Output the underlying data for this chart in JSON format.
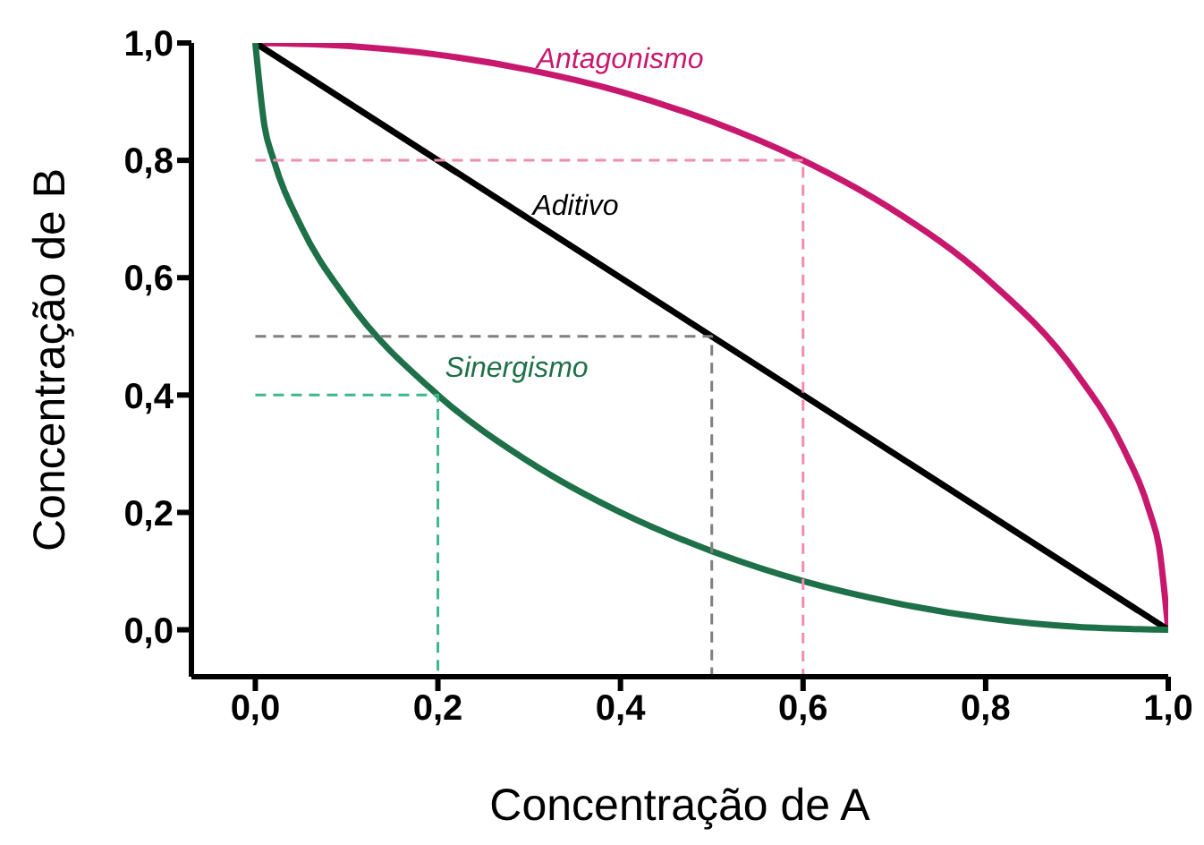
{
  "chart_data": {
    "type": "line",
    "xlabel": "Concentração de A",
    "ylabel": "Concentração de B",
    "xlim": [
      -0.07,
      1.0
    ],
    "ylim": [
      -0.08,
      1.0
    ],
    "xticks": [
      {
        "value": 0,
        "label": "0,0"
      },
      {
        "value": 0.2,
        "label": "0,2"
      },
      {
        "value": 0.4,
        "label": "0,4"
      },
      {
        "value": 0.6,
        "label": "0,6"
      },
      {
        "value": 0.8,
        "label": "0,8"
      },
      {
        "value": 1.0,
        "label": "1,0"
      }
    ],
    "yticks": [
      {
        "value": 0,
        "label": "0,0"
      },
      {
        "value": 0.2,
        "label": "0,2"
      },
      {
        "value": 0.4,
        "label": "0,4"
      },
      {
        "value": 0.6,
        "label": "0,6"
      },
      {
        "value": 0.8,
        "label": "0,8"
      },
      {
        "value": 1.0,
        "label": "1,0"
      }
    ],
    "grid": false,
    "legend": false,
    "marker": "none",
    "series": [
      {
        "name": "Antagonismo",
        "color": "#c8186e",
        "line_style": "solid",
        "x": [
          0,
          0.1,
          0.2,
          0.3,
          0.4,
          0.5,
          0.6,
          0.7,
          0.8,
          0.9,
          0.95,
          0.98,
          0.99,
          1.0
        ],
        "values": [
          1,
          0.995,
          0.98,
          0.954,
          0.917,
          0.866,
          0.8,
          0.714,
          0.6,
          0.436,
          0.312,
          0.199,
          0.141,
          0
        ]
      },
      {
        "name": "Aditivo",
        "color": "#000000",
        "line_style": "solid",
        "x": [
          0,
          1
        ],
        "values": [
          1,
          0
        ]
      },
      {
        "name": "Sinergismo",
        "color": "#1e7048",
        "line_style": "solid",
        "x": [
          0,
          0.01,
          0.02,
          0.05,
          0.1,
          0.2,
          0.3,
          0.4,
          0.5,
          0.6,
          0.7,
          0.8,
          0.9,
          1.0
        ],
        "values": [
          1,
          0.859,
          0.801,
          0.688,
          0.564,
          0.4,
          0.286,
          0.2,
          0.134,
          0.083,
          0.046,
          0.02,
          0.005,
          0
        ]
      },
      {
        "color": "#f08cb0",
        "line_style": "dashed",
        "x": [
          0,
          0.6,
          0.6
        ],
        "values": [
          0.8,
          0.8,
          -0.08
        ]
      },
      {
        "color": "#808080",
        "line_style": "dashed",
        "x": [
          0,
          0.5,
          0.5
        ],
        "values": [
          0.5,
          0.5,
          -0.08
        ]
      },
      {
        "color": "#3cb88a",
        "line_style": "dashed",
        "x": [
          0,
          0.2,
          0.2
        ],
        "values": [
          0.4,
          0.4,
          -0.08
        ]
      }
    ]
  }
}
